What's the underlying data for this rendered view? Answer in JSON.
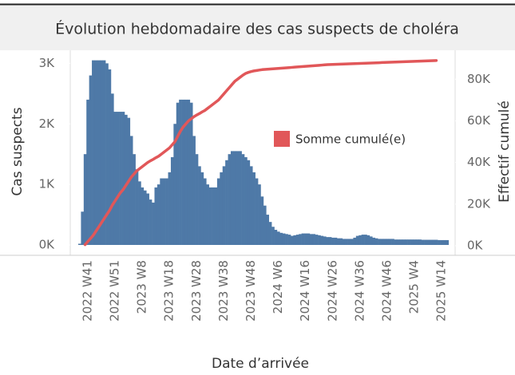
{
  "chart_data": {
    "type": "bar",
    "title": "Évolution hebdomadaire des cas suspects de choléra",
    "xlabel": "Date d’arrivée",
    "ylabel": "Cas suspects",
    "y2label": "Effectif cumulé",
    "categories": [
      null,
      null,
      null,
      "2022 W41",
      null,
      null,
      null,
      null,
      null,
      null,
      null,
      null,
      null,
      "2022 W51",
      null,
      null,
      null,
      null,
      null,
      null,
      null,
      null,
      null,
      "2023 W8",
      null,
      null,
      null,
      null,
      null,
      null,
      null,
      null,
      null,
      "2023 W18",
      null,
      null,
      null,
      null,
      null,
      null,
      null,
      null,
      null,
      "2023 W28",
      null,
      null,
      null,
      null,
      null,
      null,
      null,
      null,
      null,
      "2023 W38",
      null,
      null,
      null,
      null,
      null,
      null,
      null,
      null,
      null,
      "2023 W48",
      null,
      null,
      null,
      null,
      null,
      null,
      null,
      null,
      null,
      "2024 W6",
      null,
      null,
      null,
      null,
      null,
      null,
      null,
      null,
      null,
      "2024 W16",
      null,
      null,
      null,
      null,
      null,
      null,
      null,
      null,
      null,
      "2024 W26",
      null,
      null,
      null,
      null,
      null,
      null,
      null,
      null,
      null,
      "2024 W36",
      null,
      null,
      null,
      null,
      null,
      null,
      null,
      null,
      null,
      "2024 W46",
      null,
      null,
      null,
      null,
      null,
      null,
      null,
      null,
      null,
      "2025 W4",
      null,
      null,
      null,
      null,
      null,
      null,
      null,
      null,
      null,
      "2025 W14",
      null,
      null
    ],
    "values": [
      20,
      550,
      1500,
      2400,
      2800,
      3050,
      3050,
      3050,
      3050,
      3050,
      3000,
      2900,
      2500,
      2200,
      2200,
      2200,
      2200,
      2150,
      2100,
      1800,
      1500,
      1250,
      1050,
      950,
      900,
      850,
      750,
      700,
      950,
      1000,
      1100,
      1100,
      1100,
      1200,
      1450,
      2000,
      2350,
      2400,
      2400,
      2400,
      2400,
      2350,
      1800,
      1500,
      1300,
      1200,
      1100,
      1000,
      950,
      950,
      950,
      1100,
      1200,
      1300,
      1400,
      1500,
      1550,
      1550,
      1550,
      1550,
      1500,
      1450,
      1400,
      1300,
      1200,
      1100,
      1000,
      800,
      650,
      500,
      380,
      300,
      250,
      220,
      200,
      190,
      180,
      170,
      150,
      160,
      170,
      180,
      190,
      190,
      190,
      180,
      180,
      170,
      160,
      150,
      140,
      130,
      130,
      120,
      120,
      110,
      110,
      100,
      100,
      100,
      100,
      120,
      150,
      160,
      170,
      170,
      160,
      140,
      120,
      110,
      100,
      100,
      100,
      100,
      100,
      100,
      90,
      90,
      90,
      90,
      90,
      90,
      90,
      90,
      90,
      90,
      85,
      85,
      85,
      85,
      85,
      85,
      80,
      80,
      80,
      80
    ],
    "color": "#4e79a7",
    "series": [
      {
        "name": "Somme cumulé(e)",
        "color": "#e15759",
        "axis": "y2",
        "values": [
          null,
          null,
          500,
          2000,
          3500,
          5000,
          7000,
          9000,
          11000,
          13000,
          15000,
          17000,
          19500,
          21500,
          23500,
          25500,
          27000,
          29000,
          31000,
          33000,
          34500,
          36000,
          37000,
          38000,
          39000,
          40000,
          40800,
          41500,
          42300,
          43000,
          44000,
          45000,
          46000,
          47000,
          48500,
          50000,
          52500,
          55000,
          57000,
          58500,
          60000,
          61000,
          62000,
          62800,
          63500,
          64300,
          65000,
          66000,
          67000,
          68000,
          69000,
          70000,
          71500,
          73000,
          74500,
          76000,
          77500,
          79000,
          80000,
          81000,
          82000,
          82800,
          83300,
          83700,
          84000,
          84200,
          84400,
          84600,
          84700,
          84800,
          84900,
          85000,
          85100,
          85200,
          85300,
          85400,
          85500,
          85600,
          85700,
          85800,
          85900,
          86000,
          86100,
          86200,
          86300,
          86400,
          86500,
          86600,
          86700,
          86800,
          86900,
          87000,
          87050,
          87100,
          87150,
          87200,
          87250,
          87300,
          87350,
          87400,
          87450,
          87500,
          87550,
          87600,
          87650,
          87700,
          87750,
          87800,
          87850,
          87900,
          87950,
          88000,
          88050,
          88100,
          88150,
          88200,
          88250,
          88300,
          88350,
          88400,
          88450,
          88500,
          88550,
          88600,
          88650,
          88700,
          88750,
          88800,
          88850,
          88900,
          88950,
          89000,
          null,
          null,
          null,
          null
        ]
      }
    ],
    "ylim": [
      0,
      3150
    ],
    "yticks": [
      {
        "value": 0,
        "label": "0K"
      },
      {
        "value": 1000,
        "label": "1K"
      },
      {
        "value": 2000,
        "label": "2K"
      },
      {
        "value": 3000,
        "label": "3K"
      }
    ],
    "y2lim": [
      0,
      92000
    ],
    "y2ticks": [
      {
        "value": 0,
        "label": "0K"
      },
      {
        "value": 20000,
        "label": "20K"
      },
      {
        "value": 40000,
        "label": "40K"
      },
      {
        "value": 60000,
        "label": "60K"
      },
      {
        "value": 80000,
        "label": "80K"
      }
    ]
  }
}
